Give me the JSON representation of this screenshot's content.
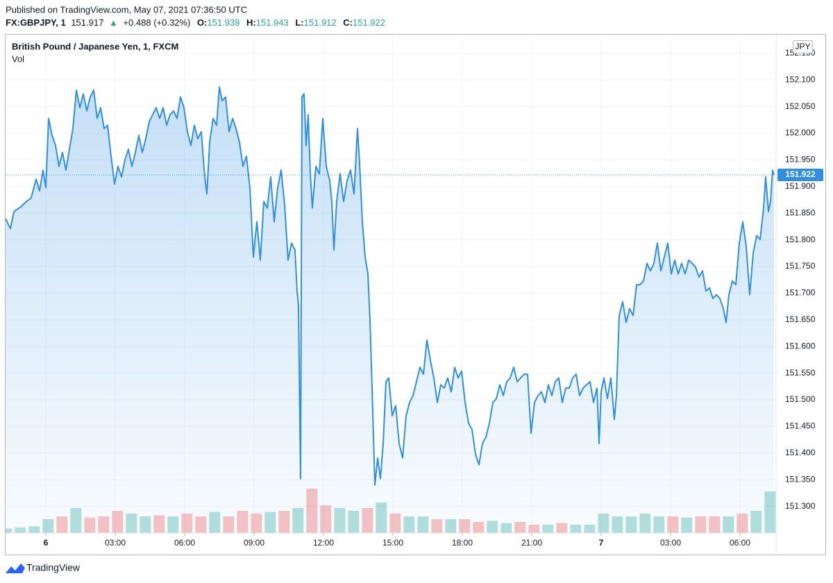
{
  "header": {
    "published": "Published on TradingView.com, May 07, 2021 07:36:50 UTC",
    "symbol": "FX:GBPJPY, 1",
    "price": "151.917",
    "arrow": "▲",
    "change": "+0.488 (+0.32%)",
    "open_label": "O:",
    "open": "151.939",
    "high_label": "H:",
    "high": "151.943",
    "low_label": "L:",
    "low": "151.912",
    "close_label": "C:",
    "close": "151.922"
  },
  "footer": {
    "brand": "TradingView"
  },
  "chart_data": {
    "type": "area",
    "currency": "JPY",
    "last_price": 151.922,
    "grid": true,
    "xlim": [
      -1.74,
      31.56
    ],
    "ylim": [
      151.25,
      152.185
    ],
    "xticks": [
      {
        "value": 0,
        "label": "6"
      },
      {
        "value": 3,
        "label": "03:00"
      },
      {
        "value": 6,
        "label": "06:00"
      },
      {
        "value": 9,
        "label": "09:00"
      },
      {
        "value": 12,
        "label": "12:00"
      },
      {
        "value": 15,
        "label": "15:00"
      },
      {
        "value": 18,
        "label": "18:00"
      },
      {
        "value": 21,
        "label": "21:00"
      },
      {
        "value": 24,
        "label": "7"
      },
      {
        "value": 27,
        "label": "03:00"
      },
      {
        "value": 30,
        "label": "06:00"
      }
    ],
    "yticks": [
      {
        "value": 151.3,
        "label": "151.300"
      },
      {
        "value": 151.35,
        "label": "151.350"
      },
      {
        "value": 151.4,
        "label": "151.400"
      },
      {
        "value": 151.45,
        "label": "151.450"
      },
      {
        "value": 151.5,
        "label": "151.500"
      },
      {
        "value": 151.55,
        "label": "151.550"
      },
      {
        "value": 151.6,
        "label": "151.600"
      },
      {
        "value": 151.65,
        "label": "151.650"
      },
      {
        "value": 151.7,
        "label": "151.700"
      },
      {
        "value": 151.75,
        "label": "151.750"
      },
      {
        "value": 151.8,
        "label": "151.800"
      },
      {
        "value": 151.85,
        "label": "151.850"
      },
      {
        "value": 151.9,
        "label": "151.900"
      },
      {
        "value": 151.95,
        "label": "151.950"
      },
      {
        "value": 152.0,
        "label": "152.000"
      },
      {
        "value": 152.05,
        "label": "152.050"
      },
      {
        "value": 152.1,
        "label": "152.100"
      },
      {
        "value": 152.15,
        "label": "152.150"
      }
    ],
    "series": [
      {
        "name": "British Pound / Japanese Yen, 1, FXCM",
        "color": "#2f8fe0",
        "x": [
          -1.74,
          -1.53,
          -1.38,
          -1.08,
          -0.84,
          -0.63,
          -0.42,
          -0.27,
          -0.12,
          0,
          0.12,
          0.27,
          0.42,
          0.57,
          0.72,
          0.87,
          1.02,
          1.17,
          1.32,
          1.47,
          1.62,
          1.77,
          1.92,
          2.07,
          2.22,
          2.37,
          2.52,
          2.67,
          2.82,
          2.97,
          3.12,
          3.27,
          3.42,
          3.57,
          3.72,
          3.87,
          4.02,
          4.17,
          4.32,
          4.47,
          4.62,
          4.77,
          4.92,
          5.07,
          5.22,
          5.37,
          5.52,
          5.67,
          5.82,
          5.97,
          6.12,
          6.27,
          6.42,
          6.57,
          6.72,
          6.87,
          6.96,
          7.08,
          7.23,
          7.38,
          7.5,
          7.62,
          7.77,
          7.92,
          8.07,
          8.22,
          8.37,
          8.52,
          8.67,
          8.82,
          8.97,
          9.12,
          9.27,
          9.42,
          9.57,
          9.72,
          9.87,
          10.02,
          10.17,
          10.32,
          10.47,
          10.62,
          10.77,
          10.86,
          10.92,
          11.01,
          11.07,
          11.16,
          11.25,
          11.34,
          11.43,
          11.52,
          11.67,
          11.82,
          11.97,
          12.12,
          12.27,
          12.36,
          12.45,
          12.57,
          12.72,
          12.87,
          13.02,
          13.17,
          13.32,
          13.47,
          13.56,
          13.68,
          13.8,
          13.92,
          14.01,
          14.1,
          14.22,
          14.34,
          14.46,
          14.58,
          14.7,
          14.82,
          14.97,
          15.12,
          15.27,
          15.42,
          15.57,
          15.72,
          15.87,
          16.02,
          16.17,
          16.32,
          16.47,
          16.62,
          16.77,
          16.92,
          17.07,
          17.22,
          17.37,
          17.52,
          17.67,
          17.82,
          17.97,
          18.12,
          18.27,
          18.42,
          18.57,
          18.72,
          18.87,
          19.02,
          19.17,
          19.32,
          19.47,
          19.62,
          19.77,
          19.92,
          20.07,
          20.22,
          20.37,
          20.52,
          20.67,
          20.82,
          20.97,
          21.12,
          21.27,
          21.42,
          21.57,
          21.72,
          21.87,
          22.02,
          22.17,
          22.32,
          22.47,
          22.62,
          22.77,
          22.92,
          23.07,
          23.22,
          23.37,
          23.52,
          23.67,
          23.82,
          23.91,
          24.0,
          24.12,
          24.27,
          24.42,
          24.57,
          24.66,
          24.78,
          24.93,
          25.08,
          25.23,
          25.38,
          25.53,
          25.68,
          25.83,
          25.98,
          26.13,
          26.28,
          26.43,
          26.58,
          26.73,
          26.88,
          27.03,
          27.18,
          27.33,
          27.48,
          27.63,
          27.78,
          27.93,
          28.08,
          28.23,
          28.38,
          28.53,
          28.68,
          28.83,
          28.98,
          29.13,
          29.28,
          29.4,
          29.52,
          29.67,
          29.82,
          29.97,
          30.12,
          30.27,
          30.42,
          30.57,
          30.72,
          30.87,
          31.02,
          31.11,
          31.23,
          31.32,
          31.41,
          31.47
        ],
        "values": [
          151.84,
          151.821,
          151.853,
          151.862,
          151.872,
          151.879,
          151.914,
          151.892,
          151.931,
          151.898,
          152.028,
          151.996,
          151.977,
          151.938,
          151.964,
          151.931,
          151.97,
          152.009,
          152.081,
          152.048,
          152.074,
          152.042,
          152.068,
          152.081,
          152.028,
          152.048,
          152.009,
          152.015,
          151.957,
          151.905,
          151.938,
          151.918,
          151.95,
          151.97,
          151.938,
          151.964,
          151.996,
          151.964,
          151.99,
          152.022,
          152.035,
          152.048,
          152.028,
          152.048,
          152.015,
          152.035,
          152.042,
          152.028,
          152.068,
          152.048,
          152.003,
          151.977,
          152.015,
          151.99,
          152.003,
          151.918,
          151.886,
          151.983,
          152.028,
          152.015,
          152.087,
          152.061,
          152.068,
          152.003,
          152.028,
          152.009,
          151.983,
          151.938,
          151.957,
          151.898,
          151.768,
          151.834,
          151.762,
          151.872,
          151.86,
          151.918,
          151.834,
          151.898,
          151.931,
          151.866,
          151.762,
          151.794,
          151.781,
          151.704,
          151.677,
          151.352,
          152.068,
          152.074,
          151.977,
          152.035,
          151.924,
          151.86,
          151.938,
          151.924,
          152.028,
          151.938,
          151.911,
          151.872,
          151.781,
          151.872,
          151.924,
          151.872,
          151.911,
          151.931,
          151.886,
          152.009,
          151.944,
          151.834,
          151.768,
          151.736,
          151.651,
          151.522,
          151.34,
          151.391,
          151.352,
          151.418,
          151.534,
          151.541,
          151.47,
          151.489,
          151.418,
          151.391,
          151.47,
          151.495,
          151.508,
          151.534,
          151.561,
          151.548,
          151.612,
          151.574,
          151.541,
          151.495,
          151.528,
          151.522,
          151.541,
          151.515,
          151.561,
          151.541,
          151.554,
          151.495,
          151.456,
          151.444,
          151.398,
          151.378,
          151.418,
          151.43,
          151.456,
          151.495,
          151.502,
          151.528,
          151.508,
          151.534,
          151.541,
          151.561,
          151.534,
          151.541,
          151.548,
          151.548,
          151.437,
          151.495,
          151.508,
          151.515,
          151.495,
          151.528,
          151.508,
          151.534,
          151.541,
          151.495,
          151.522,
          151.522,
          151.541,
          151.548,
          151.508,
          151.522,
          151.528,
          151.534,
          151.495,
          151.522,
          151.418,
          151.515,
          151.541,
          151.502,
          151.541,
          151.463,
          151.508,
          151.658,
          151.684,
          151.645,
          151.671,
          151.658,
          151.716,
          151.716,
          151.723,
          151.756,
          151.742,
          151.756,
          151.794,
          151.742,
          151.768,
          151.794,
          151.736,
          151.762,
          151.736,
          151.756,
          151.736,
          151.762,
          151.756,
          151.749,
          151.73,
          151.742,
          151.704,
          151.71,
          151.69,
          151.697,
          151.69,
          151.671,
          151.645,
          151.697,
          151.723,
          151.716,
          151.794,
          151.834,
          151.788,
          151.697,
          151.775,
          151.808,
          151.801,
          151.86,
          151.918,
          151.853,
          151.872,
          151.931,
          151.922
        ]
      },
      {
        "name": "Vol",
        "type": "volume",
        "up_color": "#26a69a",
        "down_color": "#ef5350",
        "vlim": [
          0,
          100
        ],
        "x": [
          -1.7,
          -1.1,
          -0.5,
          0.1,
          0.7,
          1.3,
          1.9,
          2.5,
          3.1,
          3.7,
          4.3,
          4.9,
          5.5,
          6.1,
          6.7,
          7.3,
          7.9,
          8.5,
          9.1,
          9.7,
          10.3,
          10.9,
          11.5,
          12.1,
          12.7,
          13.3,
          13.9,
          14.5,
          15.1,
          15.7,
          16.3,
          16.9,
          17.5,
          18.1,
          18.7,
          19.3,
          19.9,
          20.5,
          21.1,
          21.7,
          22.3,
          22.9,
          23.5,
          24.1,
          24.7,
          25.3,
          25.9,
          26.5,
          27.1,
          27.7,
          28.3,
          28.9,
          29.5,
          30.1,
          30.7,
          31.3
        ],
        "values": [
          8,
          10,
          12,
          25,
          30,
          45,
          28,
          30,
          40,
          35,
          30,
          32,
          30,
          35,
          30,
          38,
          30,
          40,
          35,
          38,
          40,
          45,
          80,
          50,
          45,
          40,
          45,
          55,
          35,
          30,
          30,
          25,
          25,
          25,
          20,
          22,
          18,
          20,
          15,
          15,
          18,
          15,
          15,
          35,
          30,
          30,
          35,
          30,
          30,
          28,
          30,
          30,
          30,
          35,
          40,
          75
        ]
      }
    ]
  }
}
